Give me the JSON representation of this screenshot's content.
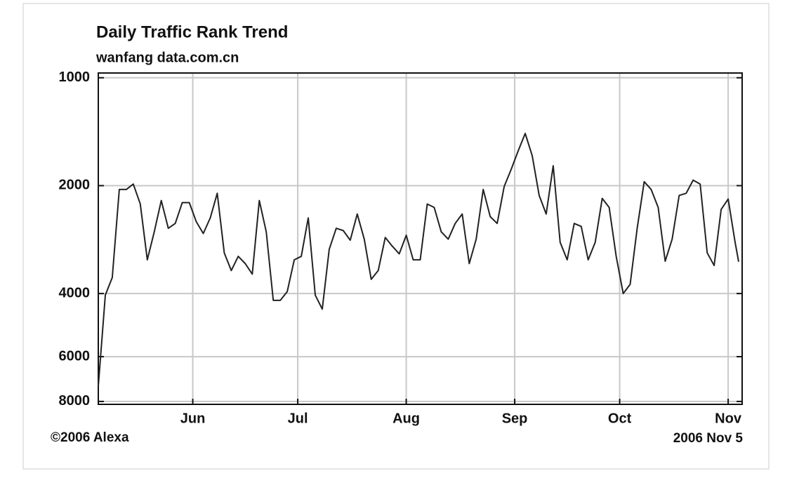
{
  "chart_data": {
    "type": "line",
    "title": "Daily Traffic Rank Trend",
    "subtitle": "wanfang data.com.cn",
    "copyright": "©2006 Alexa",
    "date_label": "2006 Nov 5",
    "color": "#222222",
    "log_scale": true,
    "grid": true,
    "inverted_y": true,
    "x": [
      125,
      127,
      129,
      131,
      133,
      135,
      137,
      139,
      141,
      143,
      145,
      147,
      149,
      151,
      153,
      155,
      157,
      159,
      161,
      163,
      165,
      167,
      169,
      171,
      173,
      175,
      177,
      179,
      181,
      183,
      185,
      187,
      189,
      191,
      193,
      195,
      197,
      199,
      201,
      203,
      205,
      207,
      209,
      211,
      213,
      215,
      217,
      219,
      221,
      223,
      225,
      227,
      229,
      231,
      233,
      235,
      237,
      239,
      241,
      243,
      245,
      247,
      249,
      251,
      253,
      255,
      257,
      259,
      261,
      263,
      265,
      267,
      269,
      271,
      273,
      275,
      277,
      279,
      281,
      283,
      285,
      287,
      289,
      291,
      293,
      295,
      297,
      299,
      301,
      303,
      305,
      307,
      308
    ],
    "values": [
      7250,
      4040,
      3610,
      2050,
      2050,
      1980,
      2250,
      3220,
      2690,
      2200,
      2630,
      2550,
      2230,
      2230,
      2520,
      2720,
      2460,
      2100,
      3080,
      3450,
      3150,
      3300,
      3530,
      2200,
      2690,
      4180,
      4180,
      3950,
      3220,
      3150,
      2460,
      4040,
      4420,
      3010,
      2630,
      2670,
      2840,
      2400,
      2820,
      3650,
      3450,
      2790,
      2950,
      3100,
      2750,
      3220,
      3220,
      2250,
      2300,
      2690,
      2820,
      2550,
      2400,
      3300,
      2820,
      2050,
      2440,
      2550,
      2010,
      1800,
      1600,
      1430,
      1650,
      2130,
      2400,
      1760,
      2880,
      3220,
      2550,
      2600,
      3220,
      2880,
      2170,
      2300,
      3150,
      4000,
      3770,
      2630,
      1950,
      2050,
      2300,
      3250,
      2820,
      2130,
      2100,
      1930,
      1980,
      3080,
      3340,
      2330,
      2180,
      2880,
      3260
    ],
    "xlim": [
      125,
      309
    ],
    "xticks": [
      {
        "value": 152,
        "label": "Jun"
      },
      {
        "value": 182,
        "label": "Jul"
      },
      {
        "value": 213,
        "label": "Aug"
      },
      {
        "value": 244,
        "label": "Sep"
      },
      {
        "value": 274,
        "label": "Oct"
      },
      {
        "value": 305,
        "label": "Nov"
      }
    ],
    "ylim": [
      970,
      8150
    ],
    "yticks": [
      1000,
      2000,
      4000,
      6000,
      8000
    ]
  }
}
